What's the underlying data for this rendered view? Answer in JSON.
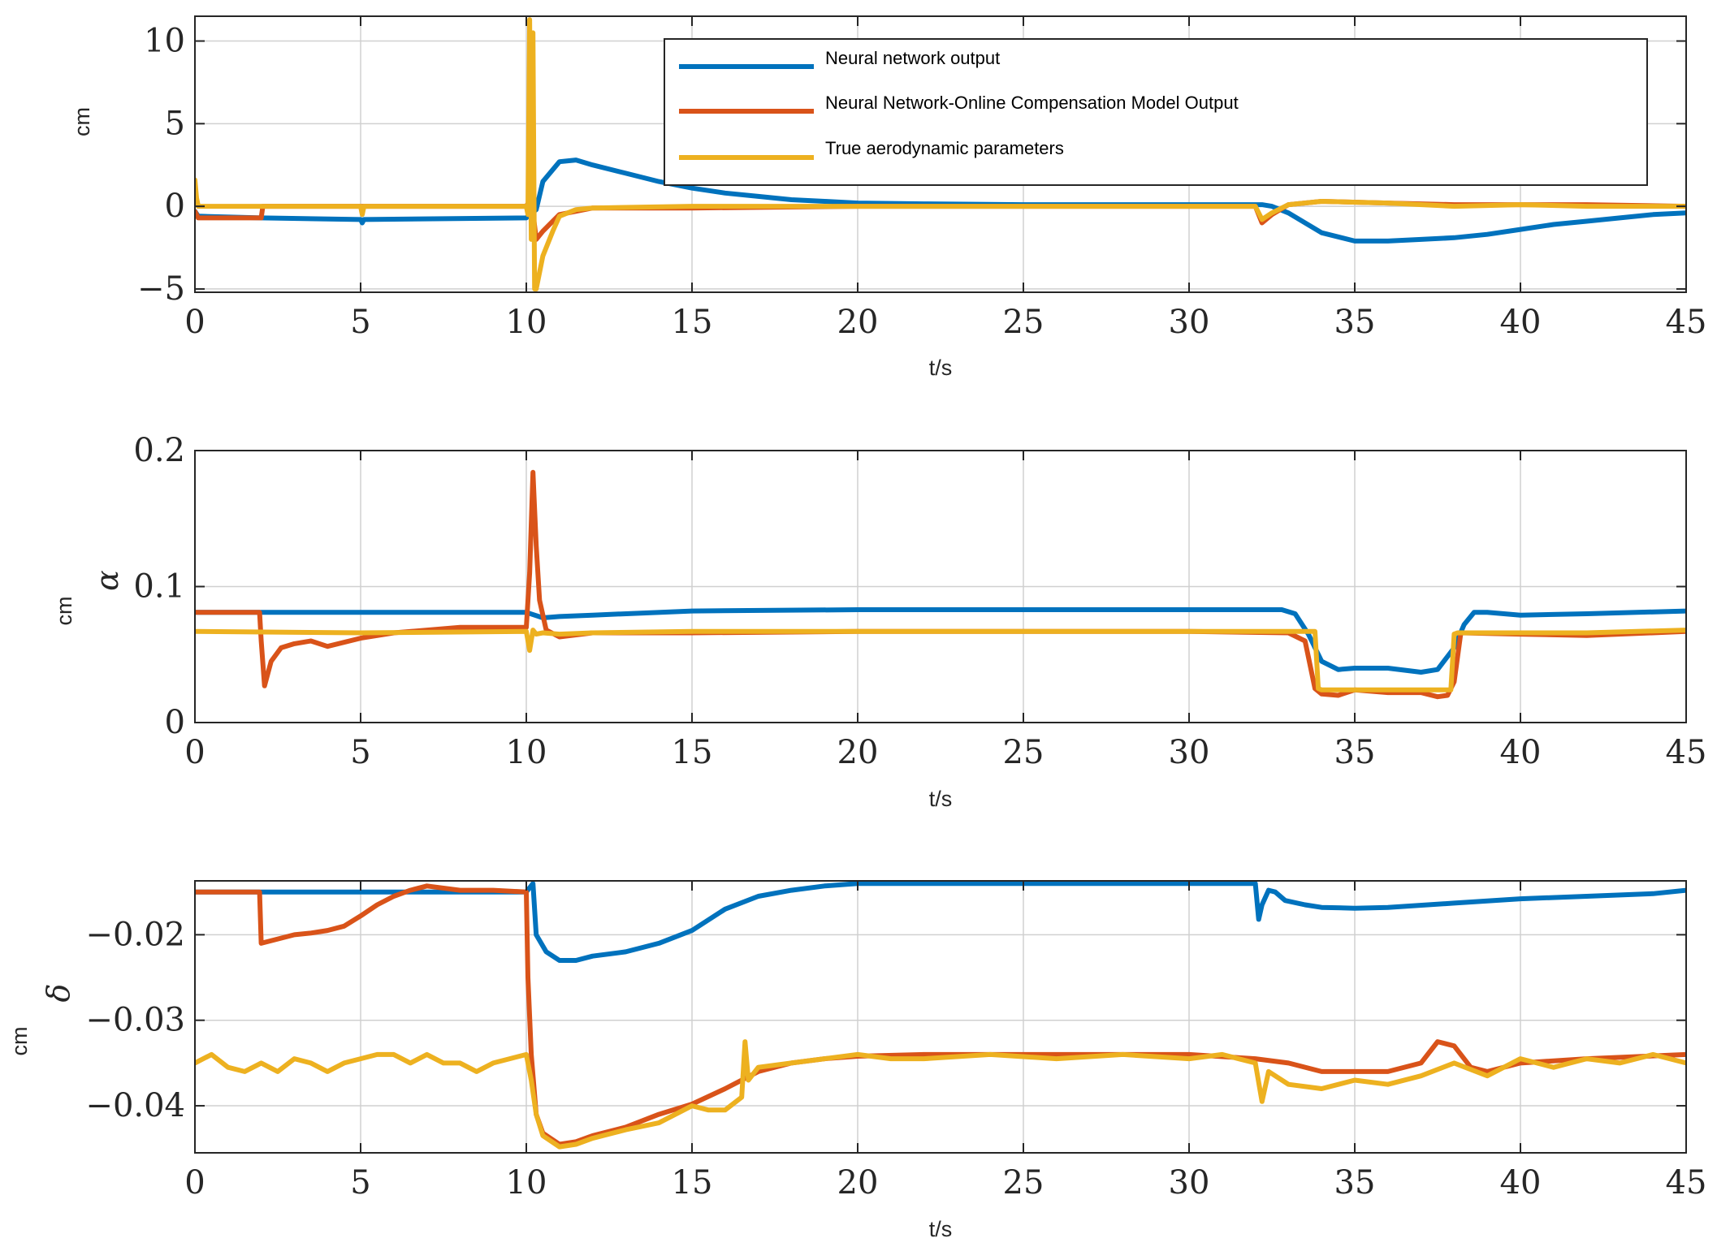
{
  "chart_data": [
    {
      "type": "line",
      "ylabel": "cm",
      "symbol": "",
      "xlabel": "t/s",
      "xlim": [
        0,
        45
      ],
      "ylim": [
        -5.2,
        11.5
      ],
      "xticks": [
        "0",
        "5",
        "10",
        "15",
        "20",
        "25",
        "30",
        "35",
        "40",
        "45"
      ],
      "yticks": [
        -5,
        0,
        5,
        10
      ],
      "ytick_labels": [
        "−5",
        "0",
        "5",
        "10"
      ],
      "grid": true,
      "series": [
        {
          "name": "Neural network output",
          "x": [
            0,
            0.1,
            2,
            5,
            5.05,
            5.1,
            10,
            10.1,
            10.3,
            10.5,
            11,
            11.5,
            12,
            13,
            14,
            15,
            16,
            17,
            18,
            19,
            20,
            22,
            25,
            30,
            32,
            32.2,
            32.5,
            33,
            34,
            35,
            36,
            37,
            38,
            39,
            40,
            41,
            42,
            43,
            44,
            45
          ],
          "y": [
            -0.3,
            -0.6,
            -0.7,
            -0.8,
            -1.0,
            -0.8,
            -0.7,
            -0.5,
            -0.2,
            1.5,
            2.7,
            2.8,
            2.5,
            2.0,
            1.5,
            1.1,
            0.8,
            0.6,
            0.4,
            0.3,
            0.2,
            0.15,
            0.1,
            0.1,
            0.1,
            0.1,
            0.0,
            -0.4,
            -1.6,
            -2.1,
            -2.1,
            -2.0,
            -1.9,
            -1.7,
            -1.4,
            -1.1,
            -0.9,
            -0.7,
            -0.5,
            -0.4
          ]
        },
        {
          "name": "Neural Network-Online Compensation Model Output",
          "x": [
            0,
            0.1,
            2,
            2.05,
            10,
            10.15,
            10.3,
            10.5,
            11,
            12,
            15,
            20,
            25,
            30,
            32,
            32.2,
            32.5,
            33,
            34,
            36,
            38,
            40,
            42,
            45
          ],
          "y": [
            -0.3,
            -0.7,
            -0.7,
            0.0,
            0.0,
            0.5,
            -2.0,
            -1.5,
            -0.5,
            -0.1,
            -0.1,
            0.0,
            0.0,
            0.0,
            0.0,
            -1.0,
            -0.5,
            0.1,
            0.3,
            0.2,
            0.1,
            0.1,
            0.1,
            0.0
          ]
        },
        {
          "name": "True aerodynamic parameters",
          "x": [
            0,
            0.05,
            0.1,
            0.3,
            2,
            5,
            5.05,
            5.1,
            10,
            10.05,
            10.1,
            10.15,
            10.2,
            10.25,
            10.3,
            10.4,
            10.5,
            10.8,
            11,
            11.5,
            12,
            15,
            20,
            25,
            30,
            32,
            32.2,
            32.5,
            33,
            34,
            36,
            38,
            40,
            42,
            45
          ],
          "y": [
            1.6,
            0.5,
            0.0,
            0.0,
            0.0,
            0.0,
            -0.5,
            0.0,
            0.0,
            -0.5,
            11.3,
            -2.0,
            10.5,
            -5.0,
            -5.0,
            -4.0,
            -3.0,
            -1.5,
            -0.6,
            -0.2,
            -0.1,
            0.0,
            0.0,
            0.0,
            0.0,
            0.0,
            -0.8,
            -0.4,
            0.1,
            0.3,
            0.2,
            0.0,
            0.1,
            0.0,
            0.0
          ]
        }
      ]
    },
    {
      "type": "line",
      "ylabel": "cm",
      "symbol": "α",
      "xlabel": "t/s",
      "xlim": [
        0,
        45
      ],
      "ylim": [
        0,
        0.2
      ],
      "xticks": [
        "0",
        "5",
        "10",
        "15",
        "20",
        "25",
        "30",
        "35",
        "40",
        "45"
      ],
      "yticks": [
        0,
        0.1,
        0.2
      ],
      "ytick_labels": [
        "0",
        "0.1",
        "0.2"
      ],
      "grid": true,
      "series": [
        {
          "name": "Neural network output",
          "x": [
            0,
            5,
            10,
            10.5,
            11,
            12,
            15,
            20,
            25,
            30,
            32,
            32.8,
            33.2,
            33.6,
            34,
            34.5,
            35,
            36,
            37,
            37.5,
            38,
            38.3,
            38.6,
            39,
            40,
            42,
            45
          ],
          "y": [
            0.081,
            0.081,
            0.081,
            0.077,
            0.078,
            0.079,
            0.082,
            0.083,
            0.083,
            0.083,
            0.083,
            0.083,
            0.08,
            0.065,
            0.045,
            0.039,
            0.04,
            0.04,
            0.037,
            0.039,
            0.055,
            0.072,
            0.081,
            0.081,
            0.079,
            0.08,
            0.082
          ]
        },
        {
          "name": "Neural Network-Online Compensation Model Output",
          "x": [
            0,
            1,
            1.95,
            2.0,
            2.1,
            2.3,
            2.6,
            3,
            3.5,
            4,
            5,
            6,
            8,
            10,
            10.1,
            10.2,
            10.3,
            10.4,
            10.6,
            11,
            12,
            15,
            20,
            25,
            30,
            33,
            33.5,
            33.8,
            34,
            34.5,
            35,
            36,
            37,
            37.5,
            37.8,
            38,
            38.2,
            40,
            42,
            45
          ],
          "y": [
            0.081,
            0.081,
            0.081,
            0.06,
            0.027,
            0.045,
            0.055,
            0.058,
            0.06,
            0.056,
            0.062,
            0.066,
            0.07,
            0.07,
            0.11,
            0.184,
            0.13,
            0.09,
            0.068,
            0.063,
            0.066,
            0.066,
            0.067,
            0.067,
            0.067,
            0.066,
            0.06,
            0.025,
            0.021,
            0.02,
            0.024,
            0.022,
            0.022,
            0.019,
            0.02,
            0.03,
            0.066,
            0.065,
            0.064,
            0.067
          ]
        },
        {
          "name": "True aerodynamic parameters",
          "x": [
            0,
            5,
            10,
            10.1,
            10.2,
            10.3,
            10.5,
            11,
            12,
            15,
            20,
            25,
            30,
            33,
            33.8,
            33.9,
            34,
            35,
            36,
            37,
            37.9,
            38.0,
            38.1,
            40,
            42,
            45
          ],
          "y": [
            0.067,
            0.066,
            0.067,
            0.053,
            0.068,
            0.065,
            0.066,
            0.065,
            0.066,
            0.067,
            0.067,
            0.067,
            0.067,
            0.067,
            0.067,
            0.025,
            0.024,
            0.024,
            0.024,
            0.024,
            0.024,
            0.065,
            0.066,
            0.066,
            0.066,
            0.068
          ]
        }
      ]
    },
    {
      "type": "line",
      "ylabel": "cm",
      "symbol": "δ",
      "xlabel": "t/s",
      "xlim": [
        0,
        45
      ],
      "ylim": [
        -0.0455,
        -0.0137
      ],
      "xticks": [
        "0",
        "5",
        "10",
        "15",
        "20",
        "25",
        "30",
        "35",
        "40",
        "45"
      ],
      "yticks": [
        -0.02,
        -0.03,
        -0.04
      ],
      "ytick_labels": [
        "−0.02",
        "−0.03",
        "−0.04"
      ],
      "grid": true,
      "series": [
        {
          "name": "Neural network output",
          "x": [
            0,
            5,
            10,
            10.2,
            10.3,
            10.6,
            11,
            11.5,
            12,
            13,
            14,
            15,
            16,
            17,
            18,
            19,
            20,
            22,
            25,
            30,
            32,
            32.1,
            32.2,
            32.4,
            32.6,
            32.9,
            33.5,
            34,
            35,
            36,
            38,
            40,
            42,
            44,
            45
          ],
          "y": [
            -0.015,
            -0.015,
            -0.015,
            -0.014,
            -0.02,
            -0.022,
            -0.023,
            -0.023,
            -0.0225,
            -0.022,
            -0.021,
            -0.0195,
            -0.017,
            -0.0155,
            -0.0148,
            -0.0143,
            -0.014,
            -0.014,
            -0.014,
            -0.014,
            -0.014,
            -0.0182,
            -0.0165,
            -0.0148,
            -0.015,
            -0.016,
            -0.0165,
            -0.0168,
            -0.0169,
            -0.0168,
            -0.0163,
            -0.0158,
            -0.0155,
            -0.0152,
            -0.0148
          ]
        },
        {
          "name": "Neural Network-Online Compensation Model Output",
          "x": [
            0,
            1.95,
            2.0,
            2.5,
            3,
            3.5,
            4,
            4.5,
            5,
            5.5,
            6,
            6.5,
            7,
            8,
            9,
            10,
            10.05,
            10.15,
            10.3,
            10.5,
            11,
            11.5,
            12,
            13,
            14,
            15,
            16,
            17,
            18,
            19,
            20,
            22,
            25,
            30,
            32,
            33,
            34,
            35,
            36,
            37,
            37.5,
            38,
            38.5,
            39,
            40,
            42,
            45
          ],
          "y": [
            -0.015,
            -0.015,
            -0.021,
            -0.0205,
            -0.02,
            -0.0198,
            -0.0195,
            -0.019,
            -0.0178,
            -0.0165,
            -0.0155,
            -0.0148,
            -0.0143,
            -0.0148,
            -0.0148,
            -0.015,
            -0.025,
            -0.034,
            -0.041,
            -0.0432,
            -0.0445,
            -0.0442,
            -0.0435,
            -0.0425,
            -0.041,
            -0.0398,
            -0.038,
            -0.036,
            -0.035,
            -0.0345,
            -0.0342,
            -0.034,
            -0.034,
            -0.034,
            -0.0345,
            -0.035,
            -0.036,
            -0.036,
            -0.036,
            -0.035,
            -0.0325,
            -0.033,
            -0.0355,
            -0.036,
            -0.035,
            -0.0345,
            -0.034
          ]
        },
        {
          "name": "True aerodynamic parameters",
          "x": [
            0,
            0.5,
            1,
            1.5,
            2,
            2.5,
            3,
            3.5,
            4,
            4.5,
            5,
            5.5,
            6,
            6.5,
            7,
            7.5,
            8,
            8.5,
            9,
            9.5,
            10,
            10.15,
            10.3,
            10.5,
            11,
            11.5,
            12,
            13,
            14,
            15,
            15.5,
            16,
            16.5,
            16.6,
            16.7,
            17,
            18,
            19,
            20,
            21,
            22,
            24,
            26,
            28,
            30,
            31,
            32,
            32.2,
            32.4,
            33,
            34,
            35,
            36,
            37,
            38,
            39,
            40,
            41,
            42,
            43,
            44,
            45
          ],
          "y": [
            -0.035,
            -0.034,
            -0.0355,
            -0.036,
            -0.035,
            -0.036,
            -0.0345,
            -0.035,
            -0.036,
            -0.035,
            -0.0345,
            -0.034,
            -0.034,
            -0.035,
            -0.034,
            -0.035,
            -0.035,
            -0.036,
            -0.035,
            -0.0345,
            -0.034,
            -0.037,
            -0.041,
            -0.0435,
            -0.0448,
            -0.0445,
            -0.0438,
            -0.0428,
            -0.042,
            -0.04,
            -0.0405,
            -0.0405,
            -0.039,
            -0.0325,
            -0.037,
            -0.0355,
            -0.035,
            -0.0345,
            -0.034,
            -0.0345,
            -0.0345,
            -0.034,
            -0.0345,
            -0.034,
            -0.0345,
            -0.034,
            -0.035,
            -0.0395,
            -0.036,
            -0.0375,
            -0.038,
            -0.037,
            -0.0375,
            -0.0365,
            -0.035,
            -0.0365,
            -0.0345,
            -0.0355,
            -0.0345,
            -0.035,
            -0.034,
            -0.035
          ]
        }
      ]
    }
  ],
  "legend": {
    "items": [
      {
        "label": "Neural network output",
        "color": "#0072BD"
      },
      {
        "label": "Neural Network-Online Compensation Model Output",
        "color": "#D95319"
      },
      {
        "label": "True aerodynamic parameters",
        "color": "#EDB120"
      }
    ]
  }
}
